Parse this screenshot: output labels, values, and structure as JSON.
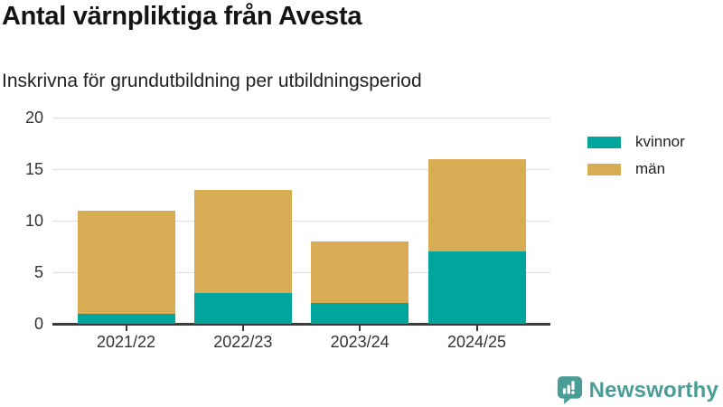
{
  "chart_data": {
    "type": "bar",
    "stacked": true,
    "title": "Antal värnpliktiga från Avesta",
    "subtitle": "Inskrivna för grundutbildning per utbildningsperiod",
    "categories": [
      "2021/22",
      "2022/23",
      "2023/24",
      "2024/25"
    ],
    "series": [
      {
        "name": "kvinnor",
        "color": "#00a59b",
        "values": [
          1,
          3,
          2,
          7
        ]
      },
      {
        "name": "män",
        "color": "#d8ab55",
        "values": [
          10,
          10,
          6,
          9
        ]
      }
    ],
    "totals": [
      11,
      13,
      8,
      16
    ],
    "xlabel": "",
    "ylabel": "",
    "ylim": [
      0,
      20
    ],
    "yticks": [
      0,
      5,
      10,
      15,
      20
    ],
    "grid": true,
    "legend_position": "right"
  },
  "branding": {
    "logo_text": "Newsworthy",
    "logo_color": "#4a9d96"
  }
}
